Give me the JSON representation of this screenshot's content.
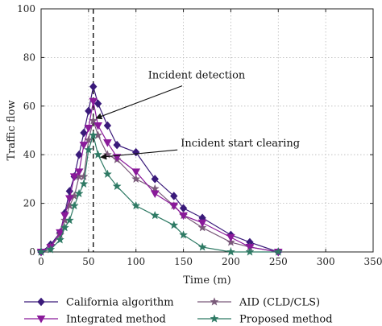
{
  "chart_data": {
    "type": "line",
    "title": "",
    "xlabel": "Time (m)",
    "ylabel": "Traffic flow",
    "xlim": [
      0,
      350
    ],
    "ylim": [
      0,
      100
    ],
    "x_ticks": [
      0,
      50,
      100,
      150,
      200,
      250,
      300,
      350
    ],
    "y_ticks": [
      0,
      20,
      40,
      60,
      80,
      100
    ],
    "grid": true,
    "legend_position": "bottom",
    "vertical_marker_x": 55,
    "series": [
      {
        "name": "California algorithm",
        "color": "#3a1a7a",
        "marker": "diamond",
        "x": [
          0,
          10,
          20,
          25,
          30,
          35,
          40,
          45,
          50,
          55,
          60,
          70,
          80,
          100,
          120,
          140,
          150,
          170,
          200,
          220,
          250
        ],
        "y": [
          0,
          3,
          8,
          16,
          25,
          31,
          40,
          49,
          58,
          68,
          61,
          52,
          44,
          41,
          30,
          23,
          18,
          14,
          7,
          4,
          0
        ]
      },
      {
        "name": "AID (CLD/CLS)",
        "color": "#7a5a7a",
        "marker": "star",
        "x": [
          0,
          10,
          20,
          25,
          30,
          35,
          40,
          45,
          50,
          55,
          60,
          70,
          80,
          100,
          120,
          140,
          150,
          170,
          200,
          220,
          250
        ],
        "y": [
          0,
          2,
          7,
          13,
          19,
          23,
          31,
          31,
          46,
          54,
          48,
          40,
          38,
          30,
          26,
          19,
          15,
          10,
          4,
          2,
          0
        ]
      },
      {
        "name": "Integrated method",
        "color": "#8a1a9a",
        "marker": "triangle-down",
        "x": [
          0,
          10,
          20,
          25,
          30,
          35,
          40,
          45,
          50,
          55,
          60,
          70,
          80,
          100,
          120,
          140,
          150,
          170,
          200,
          220,
          250
        ],
        "y": [
          0,
          2,
          8,
          15,
          22,
          31,
          33,
          44,
          51,
          62,
          52,
          45,
          39,
          33,
          24,
          19,
          15,
          12,
          6,
          2,
          0
        ]
      },
      {
        "name": "Proposed method",
        "color": "#2e7a64",
        "marker": "star",
        "x": [
          0,
          10,
          20,
          25,
          30,
          35,
          40,
          45,
          50,
          55,
          60,
          70,
          80,
          100,
          120,
          140,
          150,
          170,
          200,
          220,
          250
        ],
        "y": [
          0,
          1,
          5,
          10,
          13,
          19,
          24,
          28,
          42,
          48,
          40,
          32,
          27,
          19,
          15,
          11,
          7,
          2,
          0,
          0,
          0
        ]
      }
    ],
    "annotations": [
      {
        "text": "Incident detection",
        "x": 164,
        "y": 69,
        "arrow_to_x": 58,
        "arrow_to_y": 55
      },
      {
        "text": "Incident start clearing",
        "x": 210,
        "y": 41,
        "arrow_to_x": 63,
        "arrow_to_y": 39
      }
    ]
  }
}
